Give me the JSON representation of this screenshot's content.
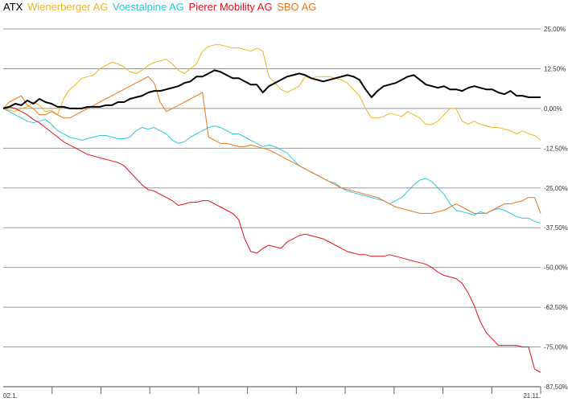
{
  "chart_data": {
    "type": "line",
    "x_start_label": "02.1.",
    "x_end_label": "21.11.",
    "y_ticks": [
      "25,00%",
      "12,50%",
      "0,00%",
      "-12,50%",
      "-25,00%",
      "-37,50%",
      "-50,00%",
      "-62,50%",
      "-75,00%",
      "-87,50%"
    ],
    "ylim": [
      -87.5,
      25
    ],
    "x_minor_ticks": 11,
    "grid": "horizontal",
    "legend_position": "top-left",
    "series": [
      {
        "name": "ATX",
        "color": "#000000",
        "width": 2,
        "values": [
          0,
          0.5,
          1.5,
          1,
          2.5,
          1.5,
          3,
          2,
          1.5,
          0.5,
          0.5,
          0,
          0,
          0,
          0.5,
          0.5,
          0.5,
          1,
          1,
          2,
          2,
          3,
          3.5,
          4,
          5,
          5.5,
          5.5,
          6,
          6.5,
          7,
          8,
          8.5,
          10,
          10,
          11,
          12,
          11.5,
          10.5,
          9.5,
          9.5,
          8.5,
          7.5,
          7.5,
          5,
          7,
          8,
          9,
          10,
          10.5,
          11,
          10.5,
          9.5,
          9,
          8.5,
          9,
          9.5,
          10,
          10.5,
          10,
          9,
          6,
          3.5,
          5.5,
          7,
          7.5,
          8,
          9,
          10,
          10.5,
          9,
          7.5,
          7,
          6.5,
          7,
          6,
          6,
          5.5,
          6.5,
          7,
          6.5,
          6,
          6,
          5,
          4.5,
          5.5,
          4,
          4,
          3.5,
          3.5,
          3.5
        ]
      },
      {
        "name": "Wienerberger AG",
        "color": "#f0b323",
        "width": 1,
        "values": [
          0,
          -0.5,
          -1,
          0,
          0.5,
          2,
          1,
          -1,
          -0.5,
          -2,
          3,
          6,
          7.5,
          9.5,
          10,
          10.5,
          12.5,
          13.5,
          14.5,
          14,
          13,
          11.5,
          11,
          12,
          13.5,
          14.5,
          15,
          15.5,
          14,
          12,
          11,
          12.5,
          14,
          18,
          19.5,
          20,
          20,
          19.5,
          19,
          19,
          18.5,
          18,
          19,
          18,
          10,
          8,
          6,
          5,
          6,
          7,
          10,
          9.5,
          10,
          10,
          10,
          9.5,
          9,
          8,
          6,
          4,
          0,
          -3,
          -3,
          -2.5,
          -1.5,
          -2,
          -2.5,
          -1,
          -2,
          -3,
          -5,
          -5,
          -4,
          -2,
          0,
          0,
          -4,
          -5,
          -4,
          -5,
          -5.5,
          -6,
          -6,
          -6.5,
          -7,
          -8,
          -7,
          -8,
          -8.5,
          -10
        ]
      },
      {
        "name": "Voestalpine AG",
        "color": "#2ec8d8",
        "width": 1,
        "values": [
          0,
          -1,
          -2,
          -3,
          -4,
          -4.5,
          -4,
          -3.5,
          -5,
          -7,
          -8,
          -9,
          -9.5,
          -10,
          -9.5,
          -9,
          -8.5,
          -8.5,
          -9,
          -9.5,
          -9.5,
          -9,
          -7,
          -6,
          -6.5,
          -6,
          -7,
          -8,
          -10,
          -11,
          -10.5,
          -9,
          -8,
          -7,
          -6,
          -5.5,
          -6,
          -7,
          -8,
          -8,
          -9,
          -10,
          -11,
          -12,
          -11.5,
          -12,
          -13,
          -14,
          -16,
          -18,
          -19,
          -20,
          -21,
          -22,
          -23,
          -23.5,
          -25,
          -26,
          -26.5,
          -27,
          -27.5,
          -28,
          -28.5,
          -29,
          -30,
          -29,
          -28,
          -26,
          -24,
          -22.5,
          -22,
          -23,
          -25,
          -27,
          -30,
          -32,
          -32.5,
          -33,
          -33.5,
          -32.5,
          -33,
          -32,
          -31.5,
          -32,
          -33,
          -34,
          -34.5,
          -34.5,
          -35.5,
          -36
        ]
      },
      {
        "name": "Pierer Mobility AG",
        "color": "#e2121e",
        "width": 1,
        "values": [
          0,
          0.5,
          0,
          -1,
          -2,
          -3.5,
          -4.5,
          -6,
          -7.5,
          -9,
          -10.5,
          -11.5,
          -12.5,
          -13.5,
          -14.5,
          -15,
          -15.5,
          -16,
          -16.5,
          -17,
          -18,
          -20,
          -22,
          -24,
          -25.5,
          -26,
          -27,
          -28,
          -29,
          -30.5,
          -30,
          -29.5,
          -29.5,
          -29,
          -29,
          -30,
          -31,
          -32,
          -33,
          -35,
          -41,
          -45,
          -45.5,
          -44,
          -43,
          -43.5,
          -44,
          -42,
          -41,
          -40,
          -39.5,
          -40,
          -40.5,
          -41,
          -42,
          -43,
          -44,
          -45,
          -45.5,
          -46,
          -46,
          -46.5,
          -46.5,
          -46.5,
          -46,
          -46.5,
          -47,
          -47.5,
          -48,
          -48.5,
          -49,
          -50,
          -51.5,
          -52.5,
          -53,
          -53.5,
          -55,
          -58,
          -62,
          -67,
          -70.5,
          -72.5,
          -74.5,
          -74.5,
          -74.5,
          -74.5,
          -75,
          -75,
          -82,
          -83
        ]
      },
      {
        "name": "SBO AG",
        "color": "#e8761e",
        "width": 1,
        "values": [
          0,
          2,
          3,
          4,
          1,
          0,
          -2,
          -2,
          -1,
          -2,
          -3,
          -3,
          -2,
          -1,
          0,
          1,
          2,
          3,
          4,
          5,
          6,
          7,
          8,
          9,
          10,
          8,
          2,
          -1,
          0,
          1,
          2,
          3,
          4,
          5,
          -9,
          -10,
          -11,
          -11,
          -11.5,
          -12,
          -12,
          -11.5,
          -12,
          -12.5,
          -13,
          -14,
          -15,
          -16,
          -17,
          -18,
          -19,
          -20,
          -21,
          -22,
          -23,
          -24,
          -25,
          -25.5,
          -26,
          -26.5,
          -27,
          -27.5,
          -28,
          -29,
          -30,
          -31,
          -31.5,
          -32,
          -32.5,
          -33,
          -33,
          -33,
          -32.5,
          -32,
          -31,
          -30,
          -31,
          -32,
          -33,
          -33,
          -33,
          -32,
          -31,
          -30,
          -30,
          -29.5,
          -29,
          -28,
          -28,
          -33
        ]
      }
    ]
  }
}
